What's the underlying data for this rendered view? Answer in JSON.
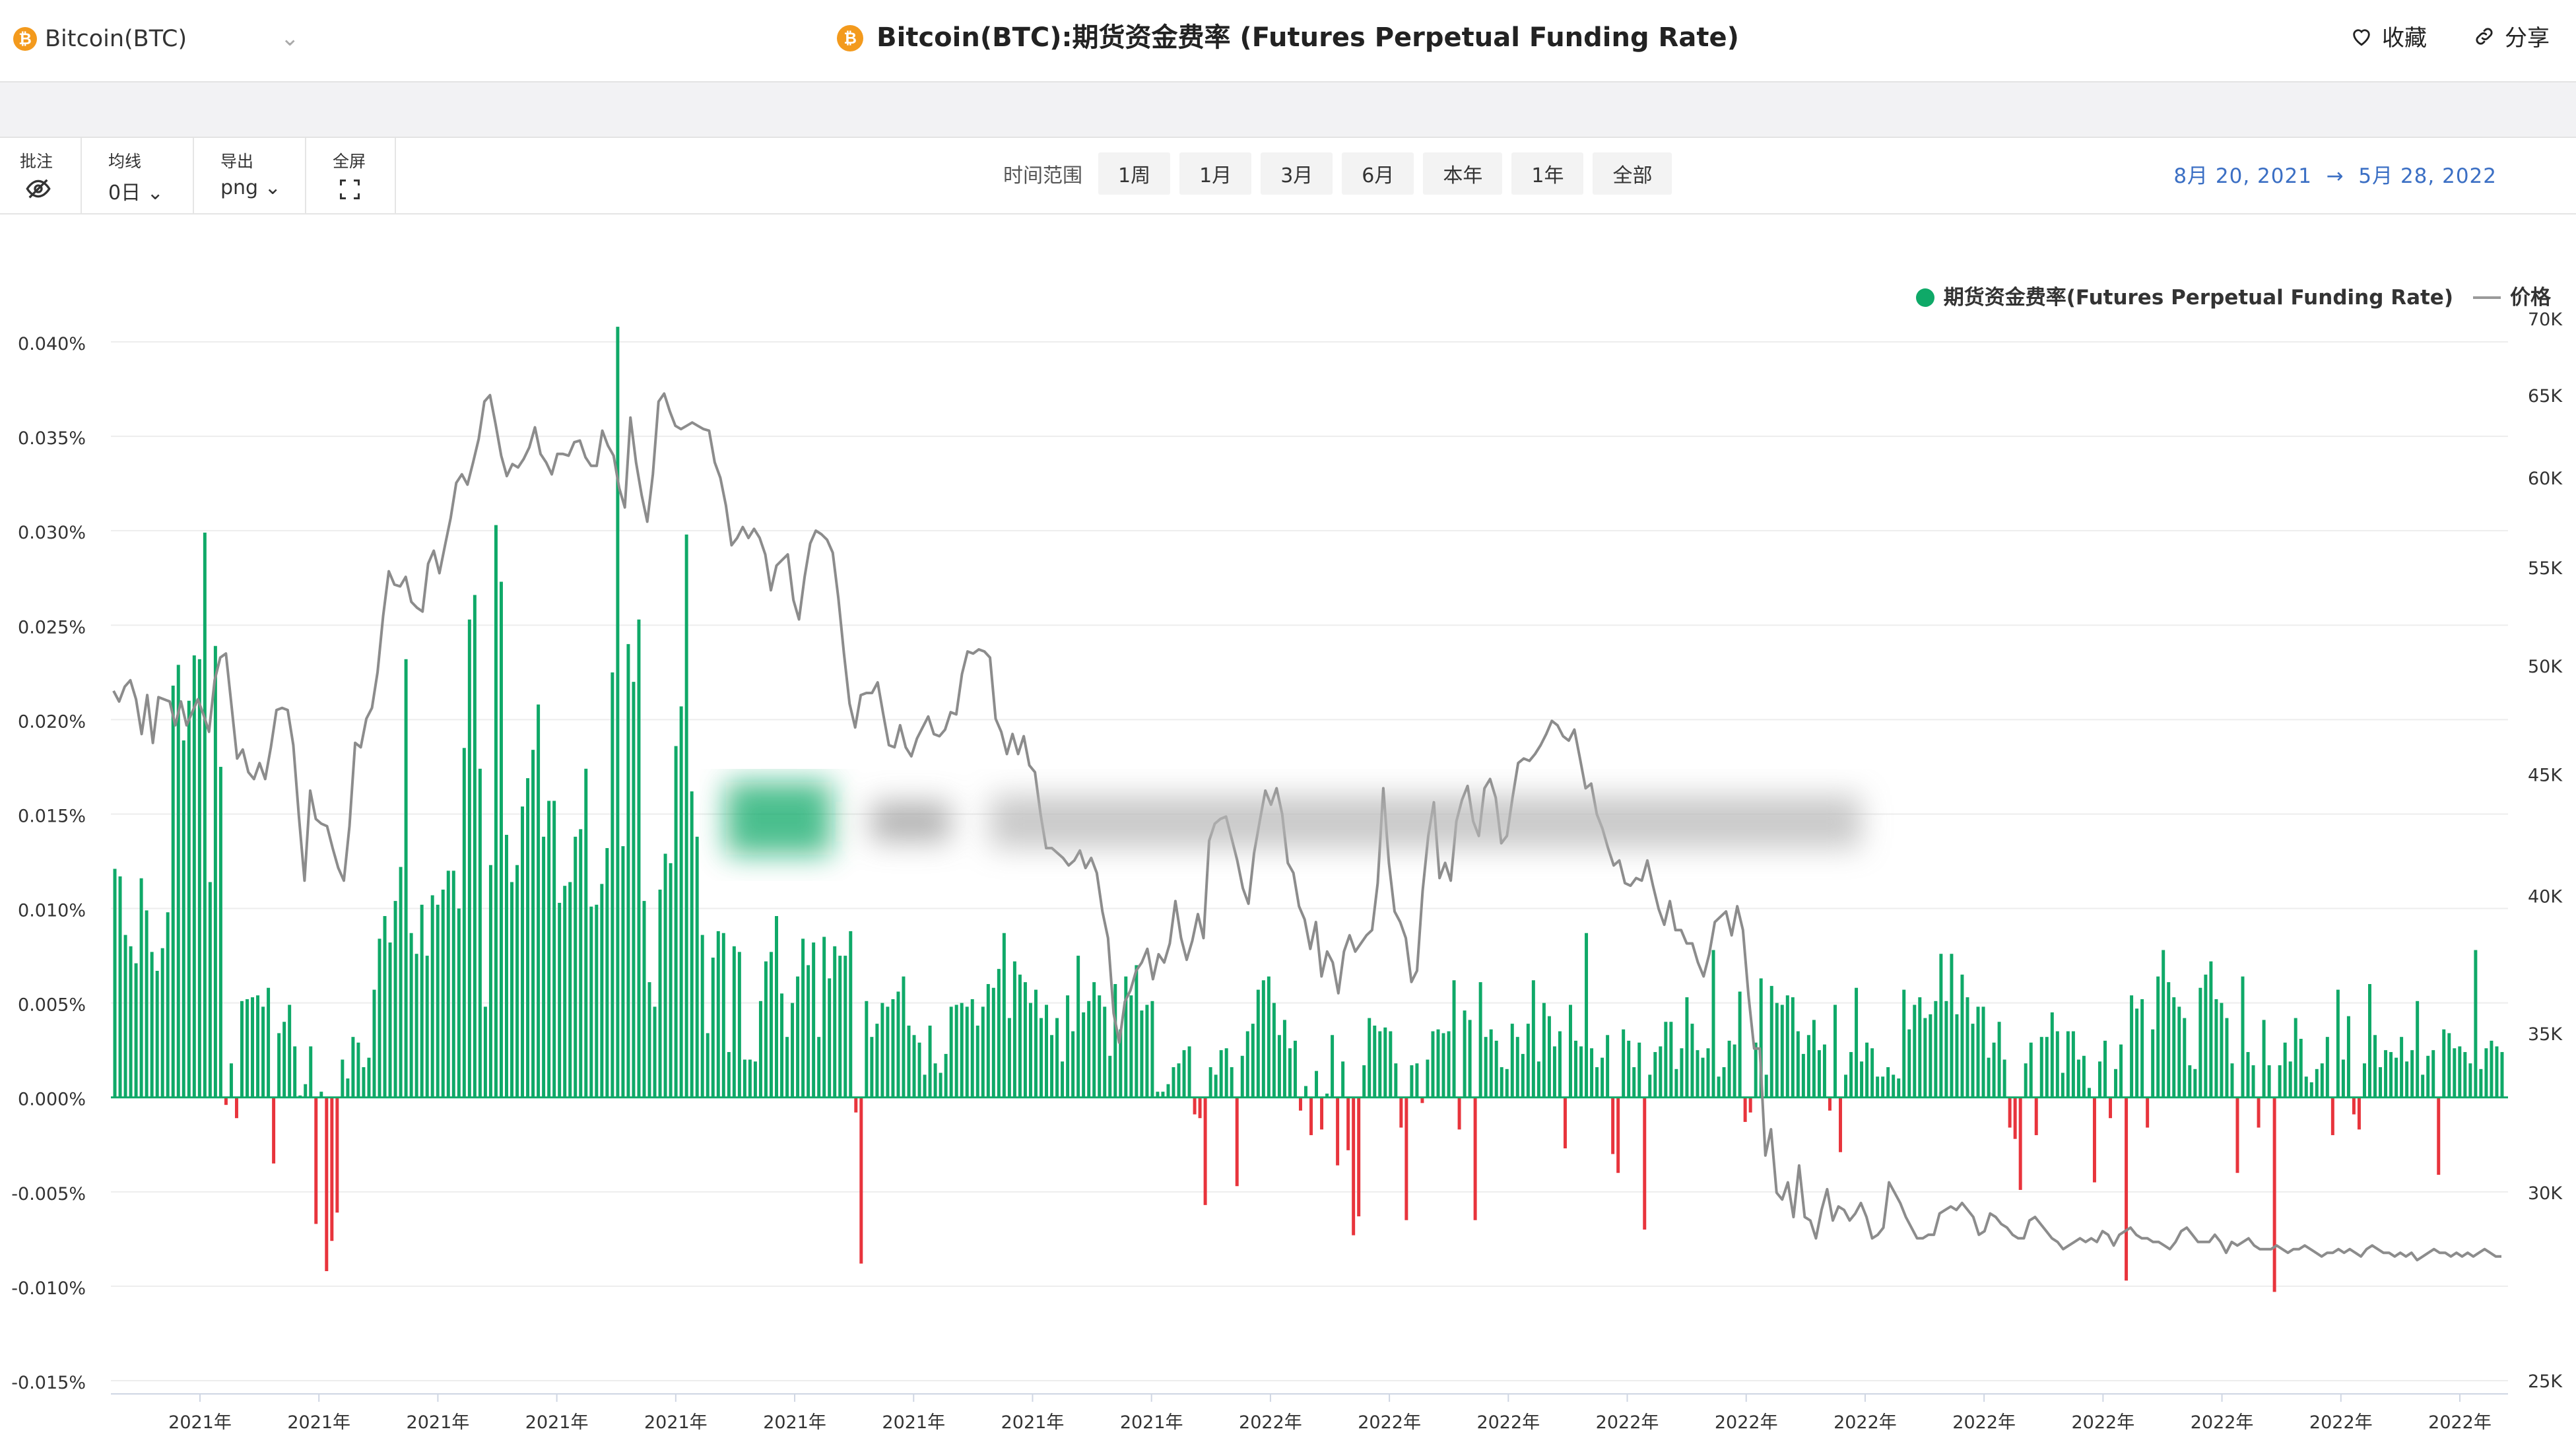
{
  "header": {
    "coin_selector": "Bitcoin(BTC)",
    "title": "Bitcoin(BTC):期货资金费率 (Futures Perpetual Funding Rate)",
    "favorite_label": "收藏",
    "share_label": "分享",
    "btc_icon": "bitcoin-icon",
    "heart_icon": "heart-icon",
    "share_icon": "link-icon"
  },
  "toolbar": {
    "annotate_label": "批注",
    "ma_label": "均线",
    "ma_value": "0日",
    "export_label": "导出",
    "export_value": "png",
    "fullscreen_label": "全屏",
    "range_label": "时间范围",
    "ranges": [
      "1周",
      "1月",
      "3月",
      "6月",
      "本年",
      "1年",
      "全部"
    ],
    "date_from": "8月 20, 2021",
    "date_arrow": "→",
    "date_to": "5月 28, 2022"
  },
  "legend": {
    "series1": "期货资金费率(Futures Perpetual Funding Rate)",
    "series2": "价格"
  },
  "chart_data": {
    "type": "bar",
    "title": "Bitcoin(BTC):期货资金费率 (Futures Perpetual Funding Rate)",
    "colors": {
      "positive": "#0fa968",
      "negative": "#e8343c",
      "price_line": "#8c8c8c"
    },
    "y_left_ticks": [
      "0.040%",
      "0.035%",
      "0.030%",
      "0.025%",
      "0.020%",
      "0.015%",
      "0.010%",
      "0.005%",
      "0.000%",
      "-0.005%",
      "-0.010%",
      "-0.015%"
    ],
    "y_left_range": [
      -0.015,
      0.04
    ],
    "y_right_ticks": [
      "70K",
      "65K",
      "60K",
      "55K",
      "50K",
      "45K",
      "40K",
      "35K",
      "30K",
      "25K"
    ],
    "y_right_range": [
      25000,
      70000
    ],
    "y_right_scale": "log",
    "x_ticks": [
      "2021年",
      "2021年",
      "2021年",
      "2021年",
      "2021年",
      "2021年",
      "2021年",
      "2021年",
      "2021年",
      "2022年",
      "2022年",
      "2022年",
      "2022年",
      "2022年",
      "2022年",
      "2022年",
      "2022年",
      "2022年",
      "2022年",
      "2022年"
    ],
    "grid": true,
    "legend_position": "top-right",
    "series": [
      {
        "name": "期货资金费率(Futures Perpetual Funding Rate)",
        "type": "bar",
        "unit": "%",
        "values": [
          0.0121,
          0.0117,
          0.0086,
          0.008,
          0.0071,
          0.0116,
          0.0099,
          0.0077,
          0.0067,
          0.0079,
          0.0098,
          0.0218,
          0.0229,
          0.0189,
          0.021,
          0.0234,
          0.0232,
          0.0299,
          0.0114,
          0.0239,
          0.0175,
          -0.0004,
          0.0018,
          -0.0011,
          0.0051,
          0.0052,
          0.0053,
          0.0054,
          0.0048,
          0.0058,
          -0.0035,
          0.0034,
          0.004,
          0.0049,
          0.0027,
          0.0001,
          0.0007,
          0.0027,
          -0.0067,
          0.0003,
          -0.0092,
          -0.0076,
          -0.0061,
          0.002,
          0.001,
          0.0032,
          0.0029,
          0.0016,
          0.0021,
          0.0057,
          0.0084,
          0.0096,
          0.0082,
          0.0104,
          0.0122,
          0.0232,
          0.0087,
          0.0076,
          0.0102,
          0.0075,
          0.0107,
          0.0102,
          0.011,
          0.012,
          0.012,
          0.01,
          0.0185,
          0.0253,
          0.0266,
          0.0174,
          0.0048,
          0.0123,
          0.0303,
          0.0273,
          0.0139,
          0.0114,
          0.0123,
          0.0154,
          0.0169,
          0.0184,
          0.0208,
          0.0138,
          0.0157,
          0.0157,
          0.0103,
          0.0112,
          0.0114,
          0.0138,
          0.0142,
          0.0174,
          0.0101,
          0.0102,
          0.0113,
          0.0132,
          0.0225,
          0.0408,
          0.0133,
          0.024,
          0.022,
          0.0253,
          0.0104,
          0.0061,
          0.0048,
          0.011,
          0.0129,
          0.0124,
          0.0186,
          0.0207,
          0.0298,
          0.0162,
          0.0138,
          0.0086,
          0.0034,
          0.0074,
          0.0088,
          0.0087,
          0.0024,
          0.008,
          0.0077,
          0.002,
          0.002,
          0.0019,
          0.0051,
          0.0072,
          0.0077,
          0.0096,
          0.0055,
          0.0032,
          0.005,
          0.0064,
          0.0084,
          0.007,
          0.0082,
          0.0032,
          0.0085,
          0.0063,
          0.008,
          0.0075,
          0.0075,
          0.0088,
          -0.0008,
          -0.0088,
          0.0051,
          0.0032,
          0.0039,
          0.005,
          0.0048,
          0.0052,
          0.0056,
          0.0064,
          0.0038,
          0.0033,
          0.0029,
          0.0012,
          0.0038,
          0.0018,
          0.0013,
          0.0023,
          0.0048,
          0.0049,
          0.005,
          0.0048,
          0.0052,
          0.0038,
          0.0048,
          0.006,
          0.0058,
          0.0068,
          0.0087,
          0.0042,
          0.0072,
          0.0065,
          0.0061,
          0.005,
          0.0057,
          0.0042,
          0.0049,
          0.0033,
          0.0042,
          0.0019,
          0.0054,
          0.0035,
          0.0075,
          0.0045,
          0.0051,
          0.0061,
          0.0054,
          0.0048,
          0.0022,
          0.006,
          0.0036,
          0.0064,
          0.0054,
          0.007,
          0.0046,
          0.0049,
          0.0051,
          0.0003,
          0.0003,
          0.0007,
          0.0016,
          0.0018,
          0.0025,
          0.0027,
          -0.0009,
          -0.0011,
          -0.0057,
          0.0016,
          0.0012,
          0.0025,
          0.0026,
          0.0016,
          -0.0047,
          0.0022,
          0.0035,
          0.0039,
          0.0057,
          0.0062,
          0.0064,
          0.005,
          0.0033,
          0.0041,
          0.0026,
          0.003,
          -0.0007,
          0.0006,
          -0.002,
          0.0014,
          -0.0017,
          0.0002,
          0.0033,
          -0.0036,
          0.0019,
          -0.0028,
          -0.0073,
          -0.0063,
          0.0017,
          0.0042,
          0.0038,
          0.0035,
          0.0037,
          0.0035,
          0.0018,
          -0.0016,
          -0.0065,
          0.0017,
          0.0018,
          -0.0003,
          0.002,
          0.0035,
          0.0036,
          0.0034,
          0.0035,
          0.0062,
          -0.0017,
          0.0046,
          0.0041,
          -0.0065,
          0.0061,
          0.0032,
          0.0036,
          0.003,
          0.0016,
          0.0015,
          0.0039,
          0.0032,
          0.0023,
          0.0039,
          0.0062,
          0.0019,
          0.005,
          0.0043,
          0.0027,
          0.0035,
          -0.0027,
          0.0049,
          0.003,
          0.0027,
          0.0087,
          0.0026,
          0.0016,
          0.0021,
          0.0033,
          -0.003,
          -0.004,
          0.0036,
          0.003,
          0.0016,
          0.0029,
          -0.007,
          0.0012,
          0.0024,
          0.0027,
          0.004,
          0.004,
          0.0015,
          0.0026,
          0.0053,
          0.0039,
          0.0025,
          0.0021,
          0.0026,
          0.0078,
          0.0011,
          0.0016,
          0.003,
          0.0028,
          0.0056,
          -0.0013,
          -0.0008,
          0.0029,
          0.0063,
          0.0012,
          0.0059,
          0.005,
          0.0049,
          0.0054,
          0.0053,
          0.0035,
          0.0023,
          0.0033,
          0.0041,
          0.0025,
          0.0028,
          -0.0007,
          0.0049,
          -0.0029,
          0.0012,
          0.0024,
          0.0058,
          0.0019,
          0.0029,
          0.0026,
          0.0011,
          0.0011,
          0.0016,
          0.0012,
          0.001,
          0.0057,
          0.0036,
          0.0049,
          0.0053,
          0.0042,
          0.0044,
          0.0051,
          0.0076,
          0.0051,
          0.0076,
          0.0044,
          0.0065,
          0.0053,
          0.0039,
          0.0048,
          0.0048,
          0.0021,
          0.0029,
          0.004,
          0.002,
          -0.0016,
          -0.0022,
          -0.0049,
          0.0018,
          0.0029,
          -0.002,
          0.0032,
          0.0032,
          0.0045,
          0.0035,
          0.0013,
          0.0035,
          0.0035,
          0.002,
          0.0022,
          0.0005,
          -0.0045,
          0.0019,
          0.003,
          -0.0011,
          0.0015,
          0.0028,
          -0.0097,
          0.0054,
          0.0047,
          0.0052,
          -0.0016,
          0.0036,
          0.0064,
          0.0078,
          0.0061,
          0.0053,
          0.0048,
          0.0042,
          0.0017,
          0.0015,
          0.0058,
          0.0065,
          0.0072,
          0.0052,
          0.005,
          0.0042,
          0.0018,
          -0.004,
          0.0064,
          0.0024,
          0.0017,
          -0.0016,
          0.0041,
          0.0017,
          -0.0103,
          0.0017,
          0.0029,
          0.0019,
          0.0042,
          0.0031,
          0.0011,
          0.0008,
          0.0015,
          0.0018,
          0.0032,
          -0.002,
          0.0057,
          0.002,
          0.0043,
          -0.0009,
          -0.0017,
          0.0018,
          0.006,
          0.0033,
          0.0016,
          0.0025,
          0.0024,
          0.0021,
          0.0032,
          0.0019,
          0.0025,
          0.0051,
          0.0012,
          0.0022,
          0.0025,
          -0.0041,
          0.0036,
          0.0034,
          0.0026,
          0.0027,
          0.0024,
          0.0018,
          0.0078,
          0.0015,
          0.0026,
          0.003,
          0.0027,
          0.0024
        ]
      },
      {
        "name": "价格",
        "type": "line",
        "unit": "USD",
        "values": [
          48800,
          48300,
          49000,
          49300,
          48400,
          46800,
          48600,
          46400,
          48500,
          48400,
          48300,
          47200,
          48300,
          47200,
          47800,
          48400,
          47700,
          46900,
          49300,
          50400,
          50600,
          48100,
          45700,
          46100,
          45100,
          44800,
          45500,
          44800,
          46200,
          47900,
          48000,
          47900,
          46300,
          43200,
          40600,
          44300,
          43100,
          42900,
          42800,
          41900,
          41100,
          40600,
          42800,
          46400,
          46200,
          47500,
          48000,
          49700,
          52500,
          54800,
          54100,
          54000,
          54500,
          53200,
          52900,
          52700,
          55200,
          55900,
          54700,
          56200,
          57700,
          59700,
          60200,
          59600,
          60900,
          62300,
          64600,
          65000,
          63200,
          61300,
          60100,
          60800,
          60600,
          61100,
          61800,
          63000,
          61400,
          60900,
          60200,
          61400,
          61400,
          61300,
          62100,
          62200,
          61200,
          60700,
          60700,
          62800,
          61900,
          61300,
          59400,
          58300,
          63600,
          60900,
          59000,
          57500,
          60200,
          64600,
          65100,
          64000,
          63100,
          62900,
          63100,
          63300,
          63100,
          62900,
          62800,
          60900,
          60000,
          58400,
          56200,
          56600,
          57200,
          56600,
          57100,
          56600,
          55700,
          53800,
          55100,
          55400,
          55700,
          53300,
          52300,
          54500,
          56300,
          57000,
          56800,
          56500,
          55800,
          53400,
          50600,
          48200,
          47100,
          48600,
          48700,
          48700,
          49200,
          47700,
          46300,
          46200,
          47200,
          46200,
          45800,
          46600,
          47100,
          47600,
          46800,
          46700,
          47000,
          47800,
          47700,
          49600,
          50700,
          50600,
          50800,
          50700,
          50400,
          47500,
          46900,
          45900,
          46800,
          45900,
          46700,
          45400,
          45100,
          43300,
          41900,
          41900,
          41700,
          41500,
          41200,
          41400,
          41800,
          41100,
          41500,
          40900,
          39400,
          38400,
          35700,
          34700,
          36100,
          36500,
          37200,
          37500,
          38000,
          36900,
          37800,
          37500,
          38200,
          39800,
          38400,
          37600,
          38300,
          39300,
          38400,
          42200,
          42900,
          43100,
          43200,
          42300,
          41400,
          40300,
          39700,
          41700,
          43000,
          44300,
          43700,
          44400,
          43300,
          41300,
          40900,
          39600,
          39100,
          38000,
          39000,
          37000,
          37900,
          37500,
          36400,
          37900,
          38500,
          37900,
          38200,
          38500,
          38700,
          40500,
          44400,
          41300,
          39400,
          39000,
          38400,
          36800,
          37200,
          40200,
          42400,
          43800,
          40700,
          41300,
          40600,
          43000,
          43900,
          44500,
          43000,
          42400,
          44400,
          44800,
          44000,
          42100,
          42400,
          44000,
          45500,
          45700,
          45600,
          45900,
          46300,
          46800,
          47400,
          47200,
          46700,
          46500,
          47000,
          45700,
          44400,
          44600,
          43300,
          42700,
          41900,
          41200,
          41400,
          40500,
          40400,
          40700,
          40600,
          41400,
          40400,
          39500,
          38900,
          39800,
          38700,
          38700,
          38200,
          38200,
          37500,
          37000,
          37800,
          39000,
          39200,
          39400,
          38500,
          39600,
          38700,
          36300,
          34500,
          34500,
          31100,
          31900,
          30000,
          29800,
          30300,
          29300,
          30800,
          29300,
          29200,
          28700,
          29500,
          30100,
          29200,
          29600,
          29500,
          29200,
          29400,
          29700,
          29300,
          28700,
          28800,
          29000,
          30300,
          30000,
          29700,
          29300,
          29000,
          28700,
          28700,
          28800,
          28800,
          29400,
          29500,
          29600,
          29500,
          29700,
          29500,
          29300,
          28800,
          28900,
          29400,
          29300,
          29100,
          29000,
          28800,
          28700,
          28700,
          29200,
          29300,
          29100,
          28900,
          28700,
          28600,
          28400,
          28500,
          28600,
          28700,
          28600,
          28700,
          28600,
          28900,
          28800,
          28500,
          28800,
          28900,
          29000,
          28800,
          28700,
          28700,
          28600,
          28600,
          28500,
          28400,
          28600,
          28900,
          29000,
          28800,
          28600,
          28600,
          28600,
          28800,
          28600,
          28300,
          28600,
          28500,
          28600,
          28700,
          28500,
          28400,
          28400,
          28400,
          28500,
          28400,
          28300,
          28400,
          28400,
          28500,
          28400,
          28300,
          28200,
          28300,
          28300,
          28400,
          28300,
          28400,
          28300,
          28200,
          28400,
          28500,
          28400,
          28300,
          28300,
          28200,
          28300,
          28200,
          28300,
          28100,
          28200,
          28300,
          28400,
          28300,
          28300,
          28200,
          28300,
          28200,
          28300,
          28200,
          28300,
          28400,
          28300,
          28200,
          28200
        ]
      }
    ]
  }
}
